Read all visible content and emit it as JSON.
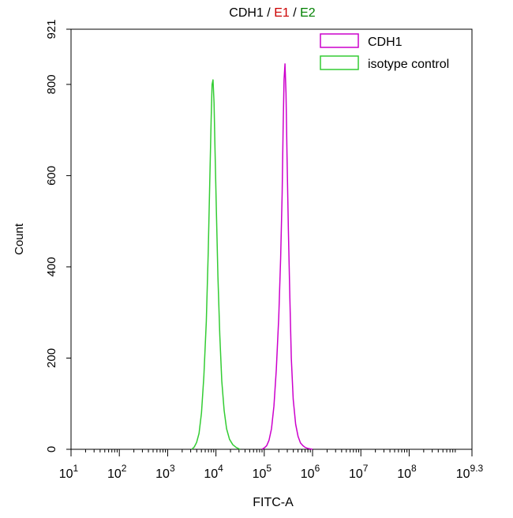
{
  "chart_data": {
    "type": "line",
    "title_parts": [
      {
        "text": "CDH1",
        "color": "#000000"
      },
      {
        "text": " / ",
        "color": "#000000"
      },
      {
        "text": "E1",
        "color": "#cc0000"
      },
      {
        "text": " / ",
        "color": "#000000"
      },
      {
        "text": "E2",
        "color": "#008000"
      }
    ],
    "xlabel": "FITC-A",
    "ylabel": "Count",
    "x_scale": "log10",
    "xlim": [
      1,
      9.3
    ],
    "ylim": [
      0,
      921
    ],
    "x_ticks": [
      {
        "base": "10",
        "exp": "1",
        "value": 1
      },
      {
        "base": "10",
        "exp": "2",
        "value": 2
      },
      {
        "base": "10",
        "exp": "3",
        "value": 3
      },
      {
        "base": "10",
        "exp": "4",
        "value": 4
      },
      {
        "base": "10",
        "exp": "5",
        "value": 5
      },
      {
        "base": "10",
        "exp": "6",
        "value": 6
      },
      {
        "base": "10",
        "exp": "7",
        "value": 7
      },
      {
        "base": "10",
        "exp": "8",
        "value": 8
      },
      {
        "base": "10",
        "exp": "9.3",
        "value": 9.3
      }
    ],
    "y_ticks": [
      {
        "label": "0",
        "value": 0
      },
      {
        "label": "200",
        "value": 200
      },
      {
        "label": "400",
        "value": 400
      },
      {
        "label": "600",
        "value": 600
      },
      {
        "label": "800",
        "value": 800
      },
      {
        "label": "921",
        "value": 921
      }
    ],
    "legend_position": "top-right",
    "series": [
      {
        "name": "CDH1",
        "color": "#cc00cc",
        "points": [
          [
            4.95,
            0
          ],
          [
            5.0,
            3
          ],
          [
            5.05,
            8
          ],
          [
            5.1,
            20
          ],
          [
            5.15,
            45
          ],
          [
            5.2,
            95
          ],
          [
            5.25,
            175
          ],
          [
            5.3,
            290
          ],
          [
            5.34,
            420
          ],
          [
            5.37,
            560
          ],
          [
            5.39,
            700
          ],
          [
            5.41,
            810
          ],
          [
            5.43,
            845
          ],
          [
            5.45,
            780
          ],
          [
            5.47,
            650
          ],
          [
            5.5,
            480
          ],
          [
            5.53,
            330
          ],
          [
            5.56,
            200
          ],
          [
            5.6,
            110
          ],
          [
            5.65,
            55
          ],
          [
            5.7,
            28
          ],
          [
            5.75,
            14
          ],
          [
            5.8,
            8
          ],
          [
            5.85,
            4
          ],
          [
            5.9,
            2
          ],
          [
            6.0,
            0
          ]
        ]
      },
      {
        "name": "isotype control",
        "color": "#33cc33",
        "points": [
          [
            3.5,
            0
          ],
          [
            3.55,
            5
          ],
          [
            3.6,
            15
          ],
          [
            3.65,
            35
          ],
          [
            3.7,
            80
          ],
          [
            3.75,
            160
          ],
          [
            3.8,
            280
          ],
          [
            3.84,
            430
          ],
          [
            3.87,
            580
          ],
          [
            3.9,
            720
          ],
          [
            3.92,
            800
          ],
          [
            3.94,
            810
          ],
          [
            3.96,
            760
          ],
          [
            3.98,
            660
          ],
          [
            4.01,
            520
          ],
          [
            4.04,
            380
          ],
          [
            4.08,
            250
          ],
          [
            4.12,
            150
          ],
          [
            4.17,
            85
          ],
          [
            4.22,
            45
          ],
          [
            4.28,
            22
          ],
          [
            4.35,
            10
          ],
          [
            4.42,
            4
          ],
          [
            4.5,
            0
          ]
        ]
      }
    ]
  }
}
